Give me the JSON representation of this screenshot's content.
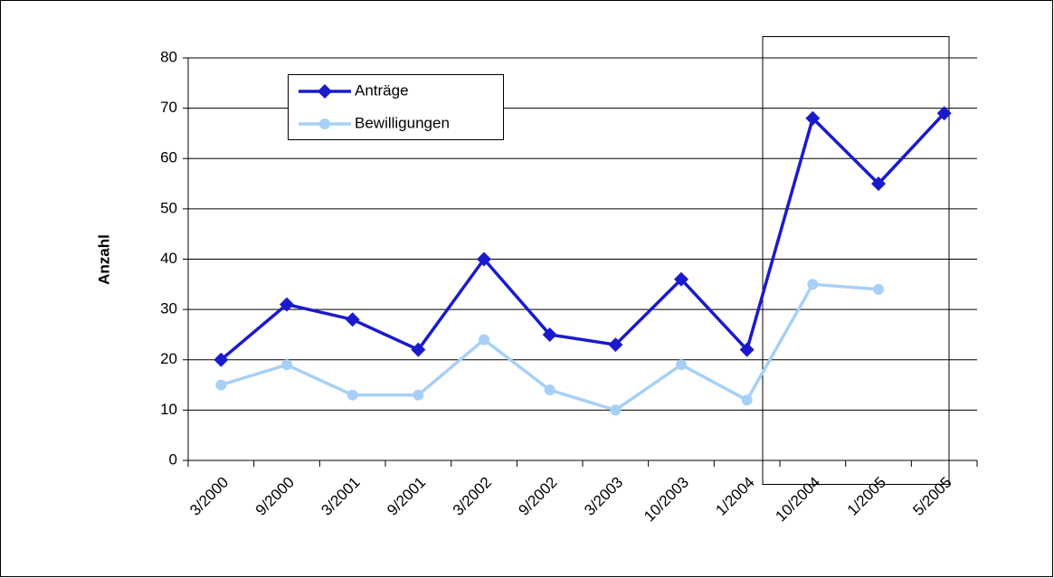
{
  "chart_data": {
    "type": "line",
    "y_label": "Anzahl",
    "categories": [
      "3/2000",
      "9/2000",
      "3/2001",
      "9/2001",
      "3/2002",
      "9/2002",
      "3/2003",
      "10/2003",
      "1/2004",
      "10/2004",
      "1/2005",
      "5/2005"
    ],
    "series": [
      {
        "name": "Anträge",
        "color": "#1a1acc",
        "marker": "diamond",
        "values": [
          20,
          31,
          28,
          22,
          40,
          25,
          23,
          36,
          22,
          68,
          55,
          69
        ]
      },
      {
        "name": "Bewilligungen",
        "color": "#a6d0f7",
        "marker": "circle",
        "values": [
          15,
          19,
          13,
          13,
          24,
          14,
          10,
          19,
          12,
          35,
          34,
          null
        ]
      }
    ],
    "ylim": [
      0,
      80
    ],
    "yticks": [
      0,
      10,
      20,
      30,
      40,
      50,
      60,
      70,
      80
    ],
    "grid": true
  }
}
